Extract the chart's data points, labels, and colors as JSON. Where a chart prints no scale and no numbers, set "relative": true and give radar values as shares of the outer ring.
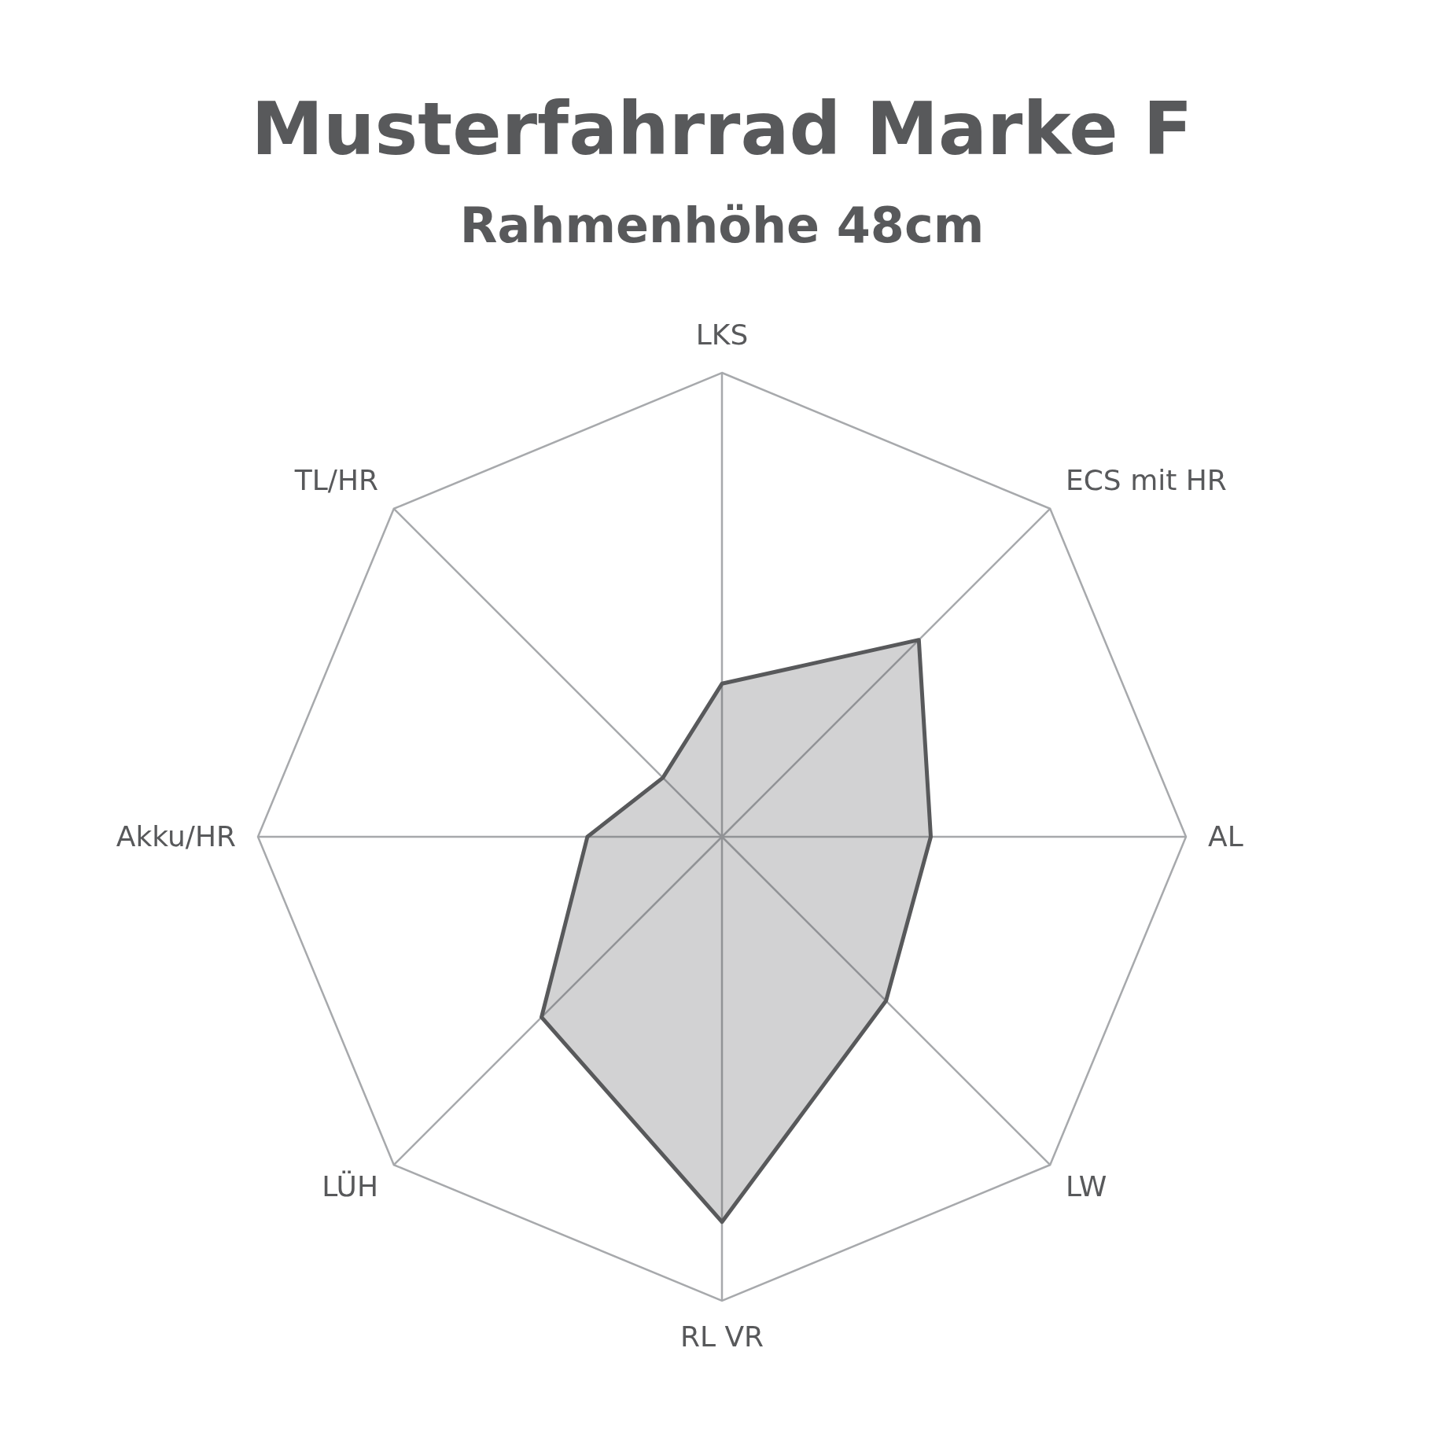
{
  "chart_data": {
    "type": "radar",
    "title": "Musterfahrrad Marke F",
    "subtitle": "Rahmenhöhe 48cm",
    "categories": [
      "LKS",
      "ECS mit HR",
      "AL",
      "LW",
      "RL VR",
      "LÜH",
      "Akku/HR",
      "TL/HR"
    ],
    "relative": true,
    "grid": true,
    "series": [
      {
        "color": "#58595b",
        "values": [
          0.33,
          0.6,
          0.45,
          0.5,
          0.83,
          0.55,
          0.29,
          0.18
        ]
      }
    ]
  }
}
